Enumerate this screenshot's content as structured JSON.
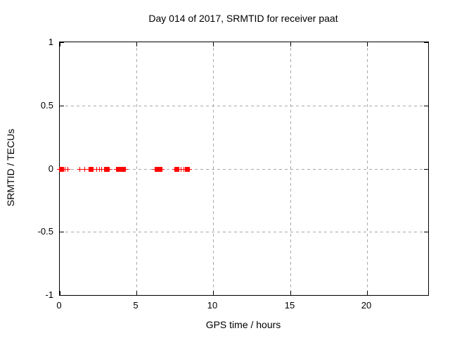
{
  "colors": {
    "background": "#ffffff",
    "border": "#000000",
    "grid": "#a8a8a8",
    "marker": "#ff0000",
    "text": "#000000"
  },
  "chart_data": {
    "type": "scatter",
    "title": "Day 014 of 2017, SRMTID for receiver paat",
    "xlabel": "GPS time / hours",
    "ylabel": "SRMTID / TECUs",
    "xlim": [
      0,
      24
    ],
    "ylim": [
      -1,
      1
    ],
    "grid": true,
    "legend": false,
    "xticks": [
      0,
      5,
      10,
      15,
      20
    ],
    "xtick_labels": [
      "0",
      "5",
      "10",
      "15",
      "20"
    ],
    "yticks": [
      -1,
      -0.5,
      0,
      0.5,
      1
    ],
    "ytick_labels": [
      "-1",
      "-0.5",
      "0",
      "0.5",
      "1"
    ],
    "marker_style": "red plus markers, dense clusters merge into filled squares",
    "series": [
      {
        "name": "SRMTID",
        "color": "#ff0000",
        "points": [
          {
            "x": 0.1,
            "y": 0,
            "style": "square"
          },
          {
            "x": 0.3,
            "y": 0,
            "style": "plus"
          },
          {
            "x": 0.5,
            "y": 0,
            "style": "plus"
          },
          {
            "x": 1.3,
            "y": 0,
            "style": "plus"
          },
          {
            "x": 1.6,
            "y": 0,
            "style": "plus"
          },
          {
            "x": 2.0,
            "y": 0,
            "style": "square"
          },
          {
            "x": 2.15,
            "y": 0,
            "style": "plus"
          },
          {
            "x": 2.4,
            "y": 0,
            "style": "plus"
          },
          {
            "x": 2.55,
            "y": 0,
            "style": "plus"
          },
          {
            "x": 2.7,
            "y": 0,
            "style": "plus"
          },
          {
            "x": 2.9,
            "y": 0,
            "style": "plus"
          },
          {
            "x": 3.05,
            "y": 0,
            "style": "square"
          },
          {
            "x": 3.8,
            "y": 0,
            "style": "square"
          },
          {
            "x": 3.95,
            "y": 0,
            "style": "plus"
          },
          {
            "x": 4.1,
            "y": 0,
            "style": "square"
          },
          {
            "x": 6.3,
            "y": 0,
            "style": "square"
          },
          {
            "x": 6.5,
            "y": 0,
            "style": "square"
          },
          {
            "x": 7.6,
            "y": 0,
            "style": "square"
          },
          {
            "x": 7.9,
            "y": 0,
            "style": "plus"
          },
          {
            "x": 8.05,
            "y": 0,
            "style": "plus"
          },
          {
            "x": 8.3,
            "y": 0,
            "style": "square"
          }
        ]
      }
    ]
  }
}
